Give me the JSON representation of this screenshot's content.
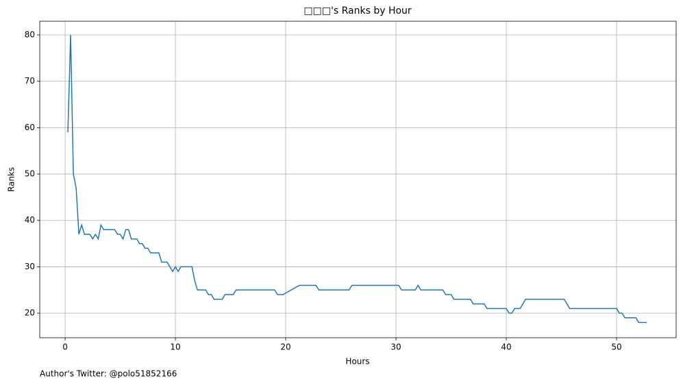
{
  "chart_data": {
    "type": "line",
    "title": "□□□'s Ranks by Hour",
    "x_label": "Hours",
    "y_label": "Ranks",
    "footer": "Author's Twitter: @polo51852166",
    "x": [
      0.25,
      0.5,
      0.75,
      1.0,
      1.25,
      1.5,
      1.75,
      2.0,
      2.25,
      2.5,
      2.75,
      3.0,
      3.25,
      3.5,
      4.5,
      4.75,
      5.0,
      5.25,
      5.5,
      5.75,
      6.0,
      6.5,
      6.75,
      7.0,
      7.25,
      7.5,
      7.75,
      8.5,
      8.75,
      9.25,
      9.5,
      9.75,
      10.0,
      10.25,
      10.5,
      11.5,
      11.75,
      12.0,
      12.75,
      13.0,
      13.25,
      13.5,
      14.25,
      14.5,
      15.25,
      15.5,
      19.0,
      19.25,
      19.75,
      21.25,
      22.75,
      23.0,
      25.75,
      26.0,
      30.25,
      30.5,
      31.75,
      32.0,
      32.25,
      34.25,
      34.5,
      35.0,
      35.25,
      36.75,
      37.0,
      38.0,
      38.25,
      40.0,
      40.25,
      40.5,
      40.75,
      41.25,
      41.75,
      45.25,
      45.75,
      50.0,
      50.25,
      50.5,
      50.75,
      51.75,
      52.0,
      52.75
    ],
    "series": [
      {
        "name": "Ranks",
        "color": "#1f77b4",
        "values": [
          59,
          80,
          50,
          47,
          37,
          39,
          37,
          37,
          37,
          36,
          37,
          36,
          39,
          38,
          38,
          37,
          37,
          36,
          38,
          38,
          36,
          36,
          35,
          35,
          34,
          34,
          33,
          33,
          31,
          31,
          30,
          29,
          30,
          29,
          30,
          30,
          27,
          25,
          25,
          24,
          24,
          23,
          23,
          24,
          24,
          25,
          25,
          24,
          24,
          26,
          26,
          25,
          25,
          26,
          26,
          25,
          25,
          26,
          25,
          25,
          24,
          24,
          23,
          23,
          22,
          22,
          21,
          21,
          20,
          20,
          21,
          21,
          23,
          23,
          21,
          21,
          20,
          20,
          19,
          19,
          18,
          18
        ]
      }
    ],
    "xlim": [
      -2.3,
      55.4
    ],
    "ylim": [
      14.7,
      82.95
    ],
    "xticks": [
      0,
      10,
      20,
      30,
      40,
      50
    ],
    "yticks": [
      20,
      30,
      40,
      50,
      60,
      70,
      80
    ],
    "grid": true
  }
}
